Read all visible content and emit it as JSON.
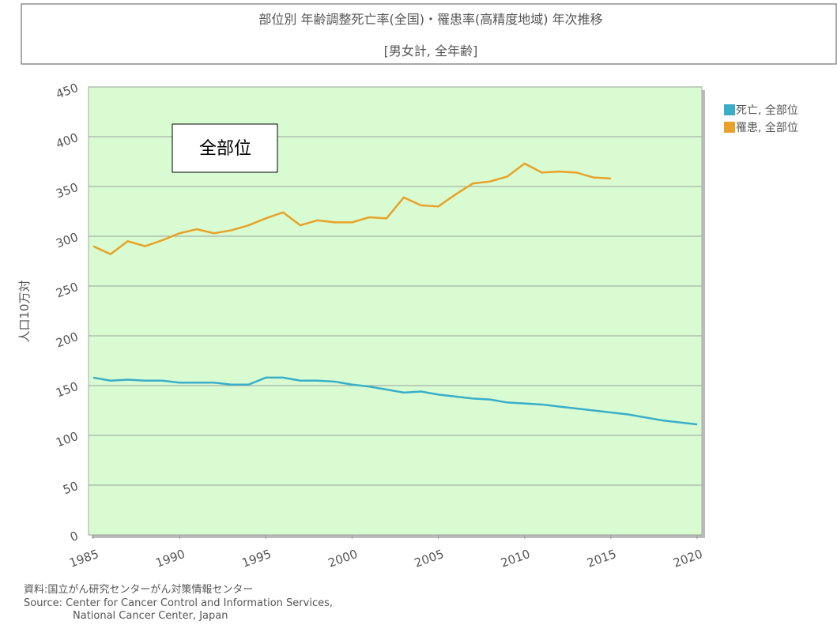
{
  "chart_data": {
    "type": "line",
    "title": "部位別 年齢調整死亡率(全国)・罹患率(高精度地域) 年次推移",
    "subtitle": "[男女計, 全年齢]",
    "y_label": "人口10万対",
    "annotation": "全部位",
    "source": [
      "資料:国立がん研究センターがん対策情報センター",
      "Source: Center for Cancer Control and Information Services,",
      "National Cancer Center, Japan"
    ],
    "x": [
      1985,
      1986,
      1987,
      1988,
      1989,
      1990,
      1991,
      1992,
      1993,
      1994,
      1995,
      1996,
      1997,
      1998,
      1999,
      2000,
      2001,
      2002,
      2003,
      2004,
      2005,
      2006,
      2007,
      2008,
      2009,
      2010,
      2011,
      2012,
      2013,
      2014,
      2015,
      2016,
      2017,
      2018,
      2019,
      2020
    ],
    "series": [
      {
        "name": "死亡, 全部位",
        "color": "#3aaec9",
        "values": [
          158,
          155,
          156,
          155,
          155,
          153,
          153,
          153,
          151,
          151,
          158,
          158,
          155,
          155,
          154,
          151,
          149,
          146,
          143,
          144,
          141,
          139,
          137,
          136,
          133,
          132,
          131,
          129,
          127,
          125,
          123,
          121,
          118,
          115,
          113,
          111
        ]
      },
      {
        "name": "罹患, 全部位",
        "color": "#e8a227",
        "values": [
          290,
          282,
          295,
          290,
          296,
          303,
          307,
          303,
          306,
          311,
          318,
          324,
          311,
          316,
          314,
          314,
          319,
          318,
          339,
          331,
          330,
          342,
          353,
          355,
          360,
          373,
          364,
          365,
          364,
          359,
          358,
          null,
          null,
          null,
          null,
          null
        ]
      }
    ],
    "xlim": [
      1985,
      2020
    ],
    "xticks": [
      1985,
      1990,
      1995,
      2000,
      2005,
      2010,
      2015,
      2020
    ],
    "ylim": [
      0,
      450
    ],
    "yticks": [
      0,
      50,
      100,
      150,
      200,
      250,
      300,
      350,
      400,
      450
    ],
    "grid": true,
    "legend": "right"
  }
}
